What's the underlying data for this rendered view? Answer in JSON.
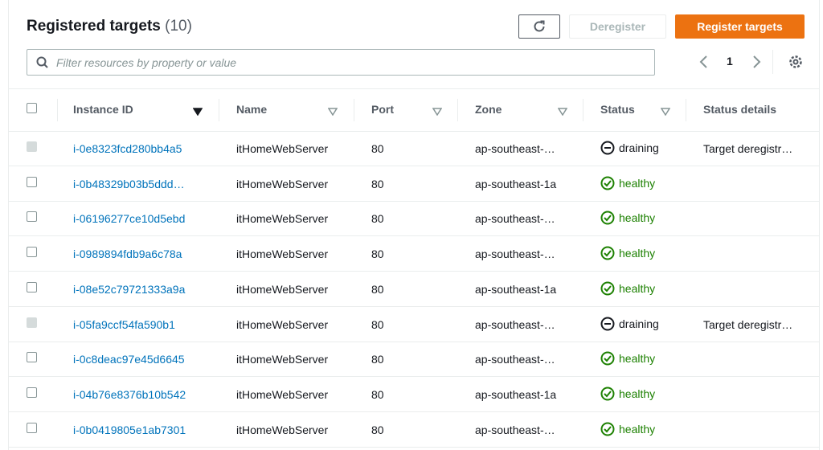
{
  "header": {
    "title": "Registered targets",
    "count": "(10)",
    "buttons": {
      "deregister": "Deregister",
      "register": "Register targets"
    },
    "search_placeholder": "Filter resources by property or value",
    "page": "1"
  },
  "table": {
    "columns": [
      "Instance ID",
      "Name",
      "Port",
      "Zone",
      "Status",
      "Status details"
    ],
    "rows": [
      {
        "instance_id": "i-0e8323fcd280bb4a5",
        "name": "itHomeWebServer",
        "port": "80",
        "zone": "ap-southeast-…",
        "status": "draining",
        "status_details": "Target deregistr…"
      },
      {
        "instance_id": "i-0b48329b03b5ddd…",
        "name": "itHomeWebServer",
        "port": "80",
        "zone": "ap-southeast-1a",
        "status": "healthy"
      },
      {
        "instance_id": "i-06196277ce10d5ebd",
        "name": "itHomeWebServer",
        "port": "80",
        "zone": "ap-southeast-…",
        "status": "healthy"
      },
      {
        "instance_id": "i-0989894fdb9a6c78a",
        "name": "itHomeWebServer",
        "port": "80",
        "zone": "ap-southeast-…",
        "status": "healthy"
      },
      {
        "instance_id": "i-08e52c79721333a9a",
        "name": "itHomeWebServer",
        "port": "80",
        "zone": "ap-southeast-1a",
        "status": "healthy"
      },
      {
        "instance_id": "i-05fa9ccf54fa590b1",
        "name": "itHomeWebServer",
        "port": "80",
        "zone": "ap-southeast-…",
        "status": "draining",
        "status_details": "Target deregistr…"
      },
      {
        "instance_id": "i-0c8deac97e45d6645",
        "name": "itHomeWebServer",
        "port": "80",
        "zone": "ap-southeast-…",
        "status": "healthy"
      },
      {
        "instance_id": "i-04b76e8376b10b542",
        "name": "itHomeWebServer",
        "port": "80",
        "zone": "ap-southeast-1a",
        "status": "healthy"
      },
      {
        "instance_id": "i-0b0419805e1ab7301",
        "name": "itHomeWebServer",
        "port": "80",
        "zone": "ap-southeast-…",
        "status": "healthy"
      }
    ]
  }
}
